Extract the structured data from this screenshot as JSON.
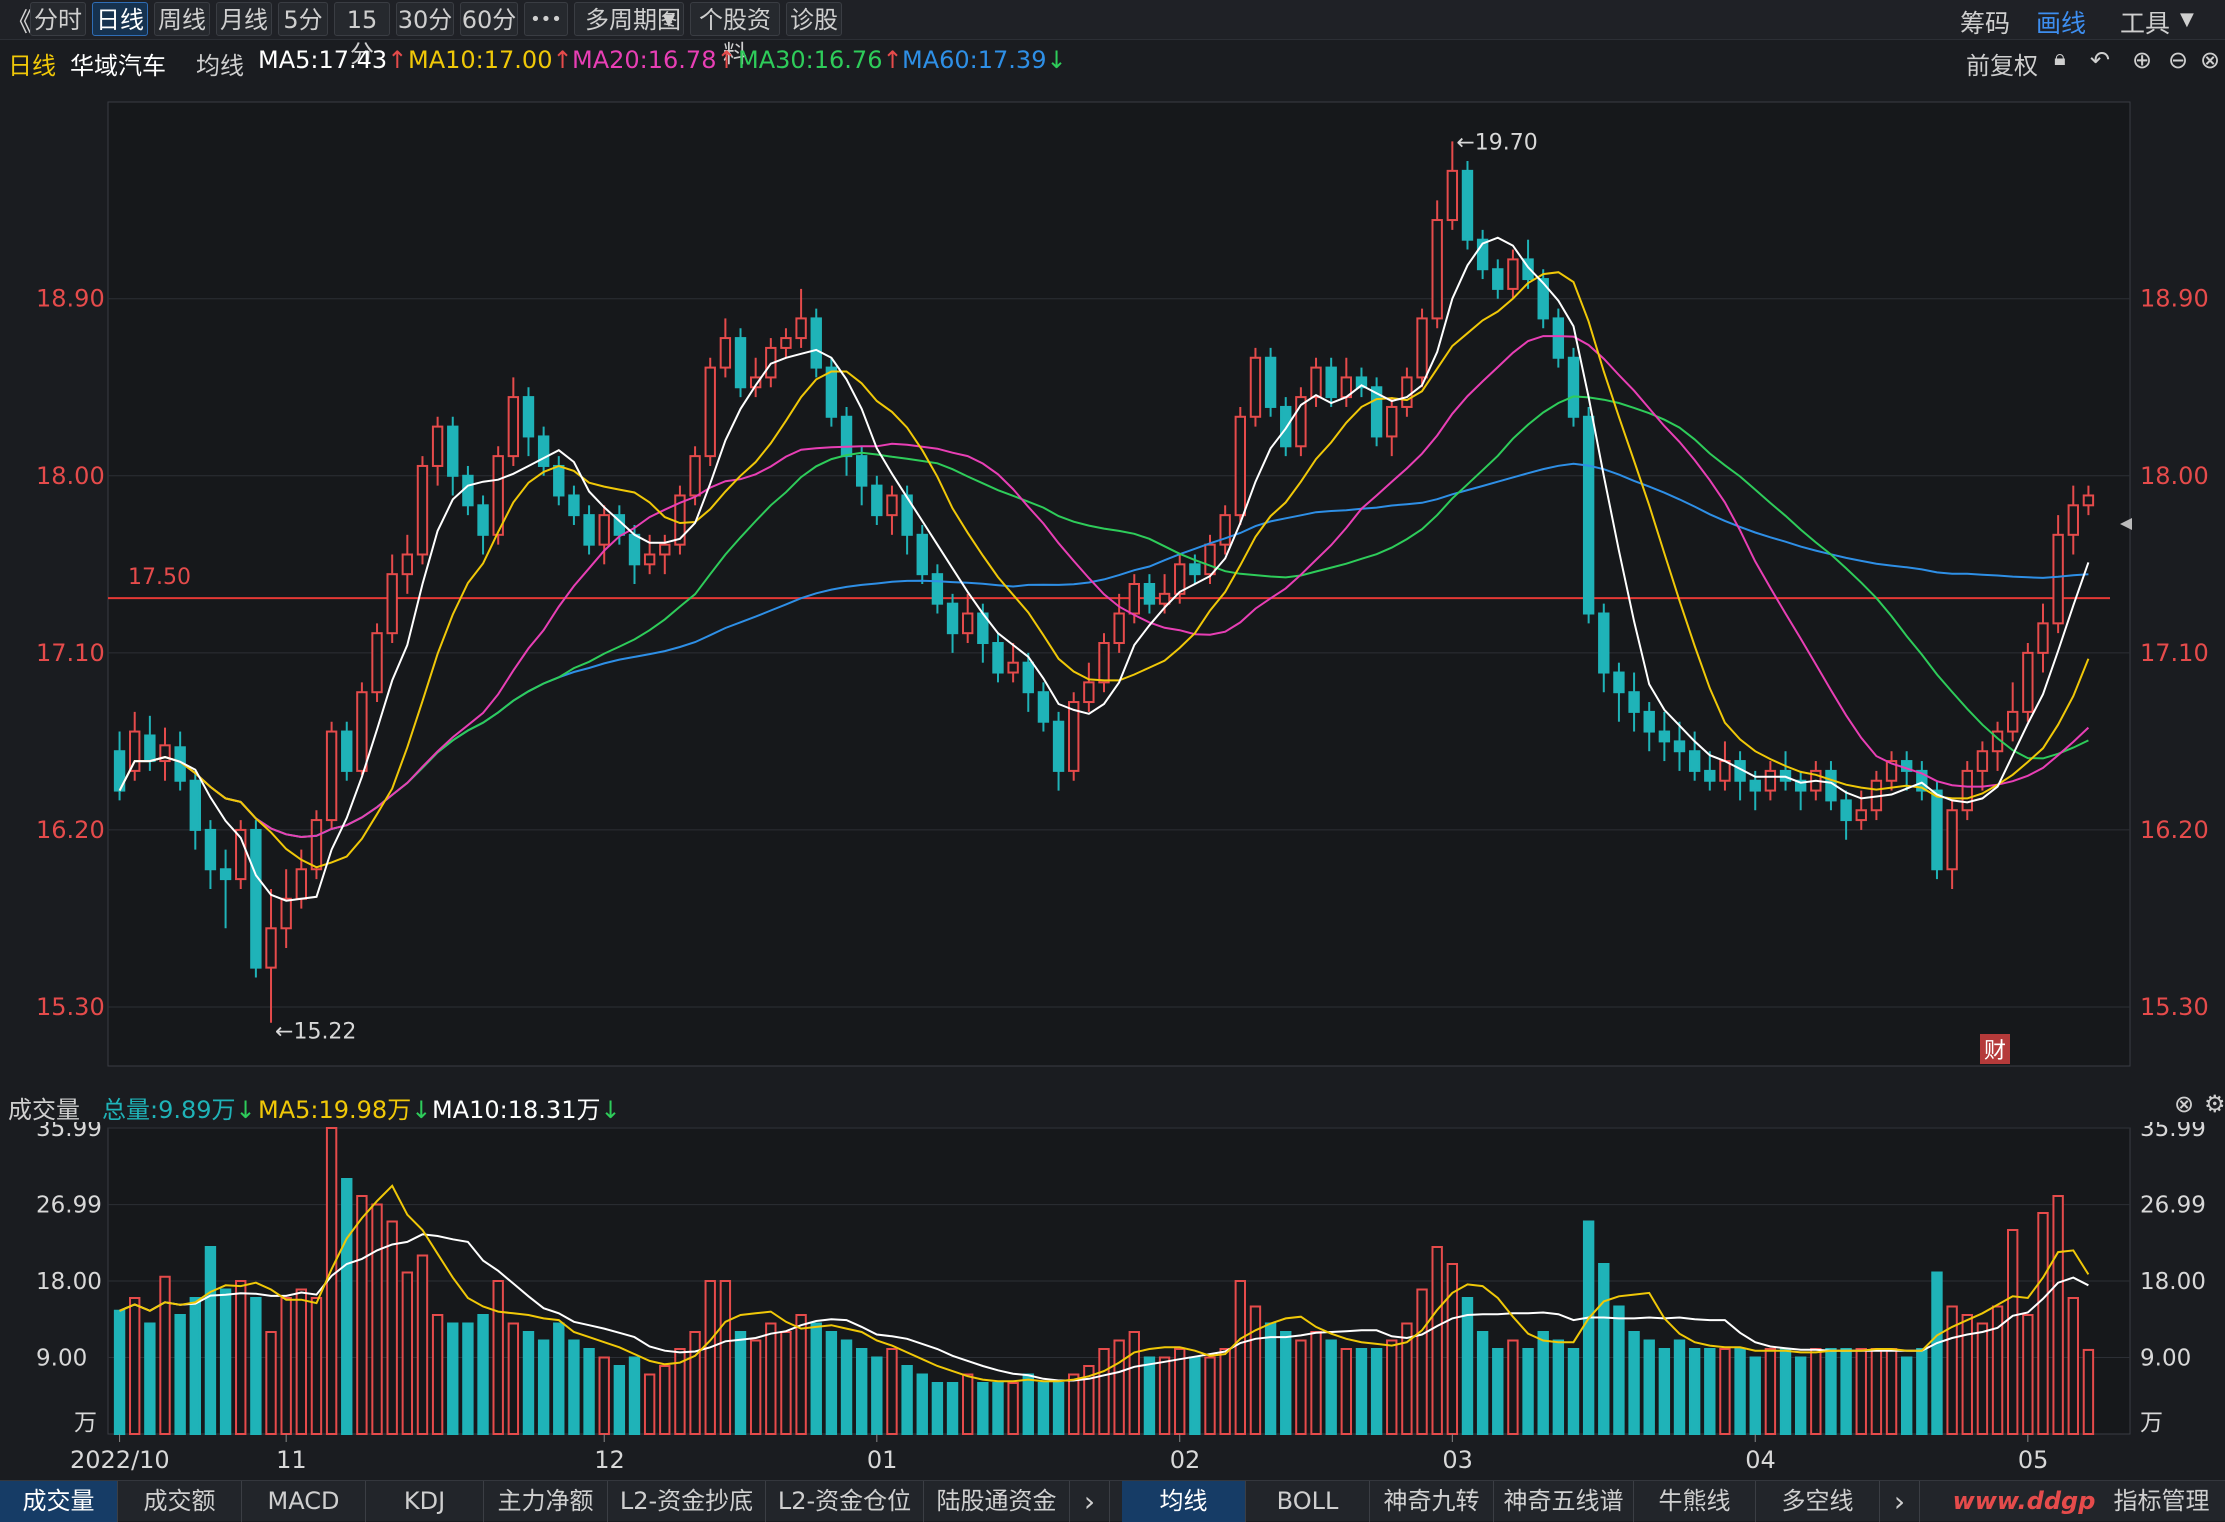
{
  "toolbar": {
    "back": "《",
    "periods": [
      "分时",
      "日线",
      "周线",
      "月线",
      "5分",
      "15分",
      "30分",
      "60分"
    ],
    "active_period": "日线",
    "more": "•••",
    "multi_period": "多周期图",
    "stock_info": "个股资料",
    "diagnose": "诊股",
    "chips": "筹码",
    "draw": "画线",
    "tools": "工具"
  },
  "indicator_line": {
    "period": "日线",
    "stock_name": "华域汽车",
    "ma_label": "均线",
    "ma5": "MA5:17.43",
    "ma10": "MA10:17.00",
    "ma20": "MA20:16.78",
    "ma30": "MA30:16.76",
    "ma60": "MA60:17.39",
    "arrows": [
      "↑",
      "↑",
      "↑",
      "↑",
      "↓"
    ],
    "adjust": "前复权"
  },
  "colors": {
    "up": "#e54b4b",
    "down": "#1fb3b8",
    "ma5": "#ffffff",
    "ma10": "#f0c808",
    "ma20": "#e83fb5",
    "ma30": "#2ecc5a",
    "ma60": "#2e8fe6",
    "price_line": "#e53935",
    "axis_text": "#e54b4b"
  },
  "price_chart": {
    "y_ticks": [
      "18.90",
      "18.00",
      "17.10",
      "16.20",
      "15.30"
    ],
    "high_label": "←19.70",
    "low_label": "←15.22",
    "ref_price_label": "17.50",
    "finance_badge": "财"
  },
  "volume_line": {
    "title": "成交量",
    "total": "总量:9.89万",
    "ma5": "MA5:19.98万",
    "ma10": "MA10:18.31万",
    "arrow": "↓"
  },
  "volume_chart": {
    "y_ticks": [
      "35.99",
      "26.99",
      "18.00",
      "9.00"
    ],
    "unit": "万"
  },
  "x_axis": {
    "labels": [
      "2022/10",
      "11",
      "12",
      "01",
      "02",
      "03",
      "04",
      "05"
    ]
  },
  "bottom_tabs_left": [
    "成交量",
    "成交额",
    "MACD",
    "KDJ",
    "主力净额",
    "L2-资金抄底",
    "L2-资金仓位",
    "陆股通资金"
  ],
  "bottom_tabs_right": [
    "均线",
    "BOLL",
    "神奇九转",
    "神奇五线谱",
    "牛熊线",
    "多空线"
  ],
  "bottom_right": "指标管理",
  "chevron": "›",
  "watermark": "www.ddgp",
  "chart_data": {
    "type": "candlestick",
    "y_range": [
      15.0,
      19.9
    ],
    "volume_unit": "万",
    "volume_range": [
      0,
      36
    ],
    "candles": [
      [
        16.6,
        16.4,
        16.7,
        16.35,
        14.5
      ],
      [
        16.5,
        16.7,
        16.8,
        16.45,
        16
      ],
      [
        16.68,
        16.55,
        16.78,
        16.5,
        13
      ],
      [
        16.55,
        16.63,
        16.72,
        16.45,
        18.5
      ],
      [
        16.62,
        16.45,
        16.7,
        16.4,
        14
      ],
      [
        16.45,
        16.2,
        16.5,
        16.1,
        16
      ],
      [
        16.2,
        16.0,
        16.25,
        15.9,
        22
      ],
      [
        16.0,
        15.95,
        16.1,
        15.7,
        17
      ],
      [
        15.95,
        16.2,
        16.25,
        15.9,
        18
      ],
      [
        16.2,
        15.5,
        16.25,
        15.45,
        16
      ],
      [
        15.5,
        15.7,
        15.9,
        15.22,
        12
      ],
      [
        15.7,
        15.85,
        16.0,
        15.6,
        16
      ],
      [
        15.85,
        16.0,
        16.1,
        15.8,
        17
      ],
      [
        16.0,
        16.25,
        16.3,
        15.95,
        16
      ],
      [
        16.25,
        16.7,
        16.75,
        16.2,
        36
      ],
      [
        16.7,
        16.5,
        16.75,
        16.45,
        30
      ],
      [
        16.5,
        16.9,
        16.95,
        16.48,
        28
      ],
      [
        16.9,
        17.2,
        17.25,
        16.85,
        27
      ],
      [
        17.2,
        17.5,
        17.6,
        17.15,
        25
      ],
      [
        17.5,
        17.6,
        17.7,
        17.4,
        19
      ],
      [
        17.6,
        18.05,
        18.1,
        17.55,
        21
      ],
      [
        18.05,
        18.25,
        18.3,
        17.95,
        14
      ],
      [
        18.25,
        18.0,
        18.3,
        17.9,
        13
      ],
      [
        18.0,
        17.85,
        18.05,
        17.8,
        13
      ],
      [
        17.85,
        17.7,
        17.9,
        17.6,
        14
      ],
      [
        17.7,
        18.1,
        18.15,
        17.65,
        18
      ],
      [
        18.1,
        18.4,
        18.5,
        18.05,
        13
      ],
      [
        18.4,
        18.2,
        18.45,
        18.1,
        12
      ],
      [
        18.2,
        18.05,
        18.25,
        18.0,
        11
      ],
      [
        18.05,
        17.9,
        18.1,
        17.85,
        13
      ],
      [
        17.9,
        17.8,
        17.95,
        17.75,
        11
      ],
      [
        17.8,
        17.65,
        17.85,
        17.6,
        10
      ],
      [
        17.65,
        17.8,
        17.85,
        17.55,
        9
      ],
      [
        17.8,
        17.7,
        17.85,
        17.65,
        8
      ],
      [
        17.7,
        17.55,
        17.75,
        17.45,
        9
      ],
      [
        17.55,
        17.6,
        17.7,
        17.5,
        7
      ],
      [
        17.6,
        17.65,
        17.7,
        17.5,
        8
      ],
      [
        17.65,
        17.9,
        17.95,
        17.6,
        10
      ],
      [
        17.9,
        18.1,
        18.15,
        17.85,
        12
      ],
      [
        18.1,
        18.55,
        18.6,
        18.05,
        18
      ],
      [
        18.55,
        18.7,
        18.8,
        18.5,
        18
      ],
      [
        18.7,
        18.45,
        18.75,
        18.4,
        12
      ],
      [
        18.45,
        18.5,
        18.6,
        18.4,
        11
      ],
      [
        18.5,
        18.65,
        18.7,
        18.45,
        13
      ],
      [
        18.65,
        18.7,
        18.75,
        18.6,
        12
      ],
      [
        18.7,
        18.8,
        18.95,
        18.65,
        14
      ],
      [
        18.8,
        18.55,
        18.85,
        18.5,
        13
      ],
      [
        18.55,
        18.3,
        18.6,
        18.25,
        12
      ],
      [
        18.3,
        18.1,
        18.35,
        18.0,
        11
      ],
      [
        18.1,
        17.95,
        18.15,
        17.85,
        10
      ],
      [
        17.95,
        17.8,
        18.0,
        17.75,
        9
      ],
      [
        17.8,
        17.9,
        17.95,
        17.7,
        10
      ],
      [
        17.9,
        17.7,
        17.95,
        17.6,
        8
      ],
      [
        17.7,
        17.5,
        17.75,
        17.45,
        7
      ],
      [
        17.5,
        17.35,
        17.55,
        17.3,
        6
      ],
      [
        17.35,
        17.2,
        17.4,
        17.1,
        6
      ],
      [
        17.2,
        17.3,
        17.4,
        17.15,
        7
      ],
      [
        17.3,
        17.15,
        17.35,
        17.05,
        6
      ],
      [
        17.15,
        17.0,
        17.2,
        16.95,
        6
      ],
      [
        17.0,
        17.05,
        17.15,
        16.95,
        6
      ],
      [
        17.05,
        16.9,
        17.1,
        16.8,
        7
      ],
      [
        16.9,
        16.75,
        16.95,
        16.7,
        6
      ],
      [
        16.75,
        16.5,
        16.8,
        16.4,
        6
      ],
      [
        16.5,
        16.85,
        16.9,
        16.45,
        7
      ],
      [
        16.85,
        16.95,
        17.05,
        16.8,
        8
      ],
      [
        16.95,
        17.15,
        17.2,
        16.9,
        10
      ],
      [
        17.15,
        17.3,
        17.4,
        17.1,
        11
      ],
      [
        17.3,
        17.45,
        17.5,
        17.25,
        12
      ],
      [
        17.45,
        17.35,
        17.5,
        17.3,
        9
      ],
      [
        17.35,
        17.4,
        17.5,
        17.3,
        9
      ],
      [
        17.4,
        17.55,
        17.6,
        17.35,
        10
      ],
      [
        17.55,
        17.5,
        17.6,
        17.45,
        9
      ],
      [
        17.5,
        17.65,
        17.7,
        17.45,
        9
      ],
      [
        17.65,
        17.8,
        17.85,
        17.6,
        10
      ],
      [
        17.8,
        18.3,
        18.35,
        17.75,
        18
      ],
      [
        18.3,
        18.6,
        18.65,
        18.25,
        15
      ],
      [
        18.6,
        18.35,
        18.65,
        18.3,
        13
      ],
      [
        18.35,
        18.15,
        18.4,
        18.1,
        12
      ],
      [
        18.15,
        18.4,
        18.45,
        18.1,
        11
      ],
      [
        18.4,
        18.55,
        18.6,
        18.35,
        12
      ],
      [
        18.55,
        18.4,
        18.6,
        18.35,
        11
      ],
      [
        18.4,
        18.5,
        18.6,
        18.35,
        10
      ],
      [
        18.5,
        18.45,
        18.55,
        18.4,
        10
      ],
      [
        18.45,
        18.2,
        18.5,
        18.15,
        10
      ],
      [
        18.2,
        18.35,
        18.4,
        18.1,
        11
      ],
      [
        18.35,
        18.5,
        18.55,
        18.3,
        13
      ],
      [
        18.5,
        18.8,
        18.85,
        18.45,
        17
      ],
      [
        18.8,
        19.3,
        19.4,
        18.75,
        22
      ],
      [
        19.3,
        19.55,
        19.7,
        19.25,
        20
      ],
      [
        19.55,
        19.2,
        19.6,
        19.15,
        16
      ],
      [
        19.2,
        19.05,
        19.25,
        19.0,
        12
      ],
      [
        19.05,
        18.95,
        19.1,
        18.9,
        10
      ],
      [
        18.95,
        19.1,
        19.15,
        18.9,
        11
      ],
      [
        19.1,
        19.0,
        19.2,
        18.95,
        10
      ],
      [
        19.0,
        18.8,
        19.05,
        18.75,
        12
      ],
      [
        18.8,
        18.6,
        18.85,
        18.55,
        11
      ],
      [
        18.6,
        18.3,
        18.65,
        18.25,
        10
      ],
      [
        18.3,
        17.3,
        18.35,
        17.25,
        25
      ],
      [
        17.3,
        17.0,
        17.35,
        16.9,
        20
      ],
      [
        17.0,
        16.9,
        17.05,
        16.75,
        15
      ],
      [
        16.9,
        16.8,
        17.0,
        16.7,
        12
      ],
      [
        16.8,
        16.7,
        16.85,
        16.6,
        11
      ],
      [
        16.7,
        16.65,
        16.8,
        16.55,
        10
      ],
      [
        16.65,
        16.6,
        16.75,
        16.5,
        11
      ],
      [
        16.6,
        16.5,
        16.7,
        16.45,
        10
      ],
      [
        16.5,
        16.45,
        16.6,
        16.4,
        10
      ],
      [
        16.45,
        16.55,
        16.65,
        16.4,
        10
      ],
      [
        16.55,
        16.45,
        16.6,
        16.35,
        10
      ],
      [
        16.45,
        16.4,
        16.5,
        16.3,
        9
      ],
      [
        16.4,
        16.5,
        16.55,
        16.35,
        10
      ],
      [
        16.5,
        16.45,
        16.6,
        16.4,
        10
      ],
      [
        16.45,
        16.4,
        16.5,
        16.3,
        9
      ],
      [
        16.4,
        16.5,
        16.55,
        16.35,
        10
      ],
      [
        16.5,
        16.35,
        16.55,
        16.3,
        10
      ],
      [
        16.35,
        16.25,
        16.4,
        16.15,
        10
      ],
      [
        16.25,
        16.3,
        16.4,
        16.2,
        10
      ],
      [
        16.3,
        16.45,
        16.5,
        16.25,
        10
      ],
      [
        16.45,
        16.55,
        16.6,
        16.4,
        10
      ],
      [
        16.55,
        16.5,
        16.6,
        16.4,
        9
      ],
      [
        16.5,
        16.4,
        16.55,
        16.35,
        10
      ],
      [
        16.4,
        16.0,
        16.45,
        15.95,
        19
      ],
      [
        16.0,
        16.3,
        16.35,
        15.9,
        15
      ],
      [
        16.3,
        16.5,
        16.55,
        16.25,
        14
      ],
      [
        16.5,
        16.6,
        16.65,
        16.4,
        13
      ],
      [
        16.6,
        16.7,
        16.75,
        16.5,
        15
      ],
      [
        16.7,
        16.8,
        16.95,
        16.65,
        24
      ],
      [
        16.8,
        17.1,
        17.15,
        16.75,
        14
      ],
      [
        17.1,
        17.25,
        17.35,
        17.0,
        26
      ],
      [
        17.25,
        17.7,
        17.8,
        17.2,
        28
      ],
      [
        17.7,
        17.85,
        17.95,
        17.6,
        16
      ],
      [
        17.85,
        17.9,
        17.95,
        17.8,
        9.89
      ]
    ]
  }
}
